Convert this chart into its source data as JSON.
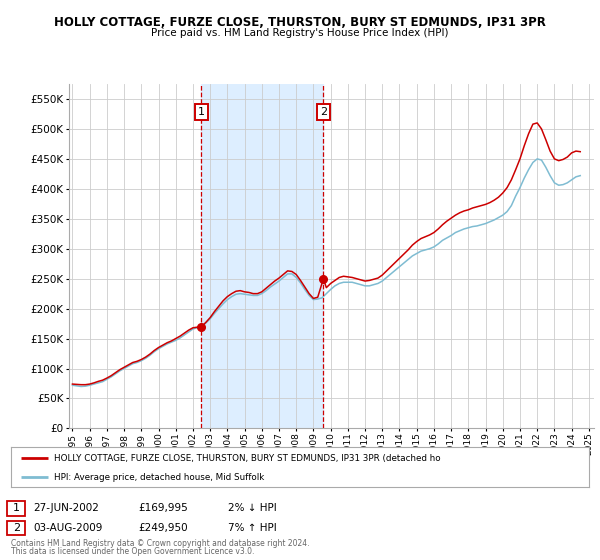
{
  "title": "HOLLY COTTAGE, FURZE CLOSE, THURSTON, BURY ST EDMUNDS, IP31 3PR",
  "subtitle": "Price paid vs. HM Land Registry's House Price Index (HPI)",
  "legend_label_red": "HOLLY COTTAGE, FURZE CLOSE, THURSTON, BURY ST EDMUNDS, IP31 3PR (detached ho",
  "legend_label_blue": "HPI: Average price, detached house, Mid Suffolk",
  "annotation1_date": "27-JUN-2002",
  "annotation1_price": "£169,995",
  "annotation1_hpi": "2% ↓ HPI",
  "annotation2_date": "03-AUG-2009",
  "annotation2_price": "£249,950",
  "annotation2_hpi": "7% ↑ HPI",
  "footer1": "Contains HM Land Registry data © Crown copyright and database right 2024.",
  "footer2": "This data is licensed under the Open Government Licence v3.0.",
  "vline1_x": 2002.49,
  "vline2_x": 2009.58,
  "marker1_x": 2002.49,
  "marker1_y": 169995,
  "marker2_x": 2009.58,
  "marker2_y": 249950,
  "shade_xmin": 2002.49,
  "shade_xmax": 2009.58,
  "ylim": [
    0,
    575000
  ],
  "xlim": [
    1994.8,
    2025.3
  ],
  "red_color": "#cc0000",
  "blue_color": "#7fbcd2",
  "shade_color": "#ddeeff",
  "grid_color": "#cccccc",
  "background_color": "#ffffff",
  "hpi_series": {
    "years": [
      1995.0,
      1995.25,
      1995.5,
      1995.75,
      1996.0,
      1996.25,
      1996.5,
      1996.75,
      1997.0,
      1997.25,
      1997.5,
      1997.75,
      1998.0,
      1998.25,
      1998.5,
      1998.75,
      1999.0,
      1999.25,
      1999.5,
      1999.75,
      2000.0,
      2000.25,
      2000.5,
      2000.75,
      2001.0,
      2001.25,
      2001.5,
      2001.75,
      2002.0,
      2002.25,
      2002.5,
      2002.75,
      2003.0,
      2003.25,
      2003.5,
      2003.75,
      2004.0,
      2004.25,
      2004.5,
      2004.75,
      2005.0,
      2005.25,
      2005.5,
      2005.75,
      2006.0,
      2006.25,
      2006.5,
      2006.75,
      2007.0,
      2007.25,
      2007.5,
      2007.75,
      2008.0,
      2008.25,
      2008.5,
      2008.75,
      2009.0,
      2009.25,
      2009.5,
      2009.75,
      2010.0,
      2010.25,
      2010.5,
      2010.75,
      2011.0,
      2011.25,
      2011.5,
      2011.75,
      2012.0,
      2012.25,
      2012.5,
      2012.75,
      2013.0,
      2013.25,
      2013.5,
      2013.75,
      2014.0,
      2014.25,
      2014.5,
      2014.75,
      2015.0,
      2015.25,
      2015.5,
      2015.75,
      2016.0,
      2016.25,
      2016.5,
      2016.75,
      2017.0,
      2017.25,
      2017.5,
      2017.75,
      2018.0,
      2018.25,
      2018.5,
      2018.75,
      2019.0,
      2019.25,
      2019.5,
      2019.75,
      2020.0,
      2020.25,
      2020.5,
      2020.75,
      2021.0,
      2021.25,
      2021.5,
      2021.75,
      2022.0,
      2022.25,
      2022.5,
      2022.75,
      2023.0,
      2023.25,
      2023.5,
      2023.75,
      2024.0,
      2024.25,
      2024.5
    ],
    "values": [
      72000,
      71000,
      70000,
      70500,
      72000,
      74000,
      76000,
      78000,
      82000,
      86000,
      91000,
      96000,
      100000,
      104000,
      108000,
      110000,
      113000,
      117000,
      122000,
      128000,
      133000,
      137000,
      141000,
      144000,
      147000,
      151000,
      156000,
      161000,
      166000,
      168000,
      170000,
      176000,
      183000,
      192000,
      200000,
      208000,
      215000,
      220000,
      224000,
      225000,
      224000,
      223000,
      222000,
      222000,
      225000,
      230000,
      236000,
      241000,
      246000,
      252000,
      258000,
      258000,
      252000,
      243000,
      232000,
      222000,
      215000,
      216000,
      218000,
      225000,
      232000,
      238000,
      242000,
      244000,
      244000,
      244000,
      242000,
      240000,
      238000,
      238000,
      240000,
      242000,
      246000,
      252000,
      258000,
      264000,
      270000,
      276000,
      282000,
      288000,
      292000,
      296000,
      298000,
      300000,
      303000,
      308000,
      314000,
      318000,
      322000,
      327000,
      330000,
      333000,
      335000,
      337000,
      338000,
      340000,
      342000,
      345000,
      348000,
      352000,
      356000,
      362000,
      372000,
      388000,
      402000,
      418000,
      432000,
      444000,
      450000,
      448000,
      436000,
      422000,
      410000,
      406000,
      407000,
      410000,
      415000,
      420000,
      422000
    ]
  },
  "red_series": {
    "years": [
      1995.0,
      1995.25,
      1995.5,
      1995.75,
      1996.0,
      1996.25,
      1996.5,
      1996.75,
      1997.0,
      1997.25,
      1997.5,
      1997.75,
      1998.0,
      1998.25,
      1998.5,
      1998.75,
      1999.0,
      1999.25,
      1999.5,
      1999.75,
      2000.0,
      2000.25,
      2000.5,
      2000.75,
      2001.0,
      2001.25,
      2001.5,
      2001.75,
      2002.0,
      2002.25,
      2002.49,
      2002.75,
      2003.0,
      2003.25,
      2003.5,
      2003.75,
      2004.0,
      2004.25,
      2004.5,
      2004.75,
      2005.0,
      2005.25,
      2005.5,
      2005.75,
      2006.0,
      2006.25,
      2006.5,
      2006.75,
      2007.0,
      2007.25,
      2007.5,
      2007.75,
      2008.0,
      2008.25,
      2008.5,
      2008.75,
      2009.0,
      2009.25,
      2009.58,
      2009.75,
      2010.0,
      2010.25,
      2010.5,
      2010.75,
      2011.0,
      2011.25,
      2011.5,
      2011.75,
      2012.0,
      2012.25,
      2012.5,
      2012.75,
      2013.0,
      2013.25,
      2013.5,
      2013.75,
      2014.0,
      2014.25,
      2014.5,
      2014.75,
      2015.0,
      2015.25,
      2015.5,
      2015.75,
      2016.0,
      2016.25,
      2016.5,
      2016.75,
      2017.0,
      2017.25,
      2017.5,
      2017.75,
      2018.0,
      2018.25,
      2018.5,
      2018.75,
      2019.0,
      2019.25,
      2019.5,
      2019.75,
      2020.0,
      2020.25,
      2020.5,
      2020.75,
      2021.0,
      2021.25,
      2021.5,
      2021.75,
      2022.0,
      2022.25,
      2022.5,
      2022.75,
      2023.0,
      2023.25,
      2023.5,
      2023.75,
      2024.0,
      2024.25,
      2024.5
    ],
    "values": [
      74000,
      73500,
      73000,
      73000,
      74000,
      76000,
      78500,
      80500,
      84000,
      88000,
      93000,
      98000,
      102000,
      106000,
      110000,
      112000,
      115000,
      119000,
      124000,
      130000,
      135000,
      139000,
      143000,
      146000,
      150000,
      154000,
      159000,
      164000,
      168000,
      169000,
      169995,
      177000,
      185000,
      195000,
      204000,
      213000,
      220000,
      225000,
      229000,
      230000,
      228000,
      227000,
      225000,
      225000,
      228000,
      234000,
      240000,
      246000,
      251000,
      257000,
      263000,
      262000,
      257000,
      247000,
      236000,
      225000,
      217000,
      219000,
      249950,
      235000,
      242000,
      247000,
      252000,
      254000,
      253000,
      252000,
      250000,
      248000,
      246000,
      247000,
      249000,
      251000,
      256000,
      263000,
      270000,
      277000,
      284000,
      291000,
      298000,
      306000,
      312000,
      317000,
      320000,
      323000,
      327000,
      333000,
      340000,
      346000,
      351000,
      356000,
      360000,
      363000,
      365000,
      368000,
      370000,
      372000,
      374000,
      377000,
      381000,
      386000,
      393000,
      402000,
      415000,
      432000,
      450000,
      472000,
      492000,
      508000,
      510000,
      500000,
      482000,
      463000,
      450000,
      447000,
      449000,
      453000,
      460000,
      463000,
      462000
    ]
  }
}
